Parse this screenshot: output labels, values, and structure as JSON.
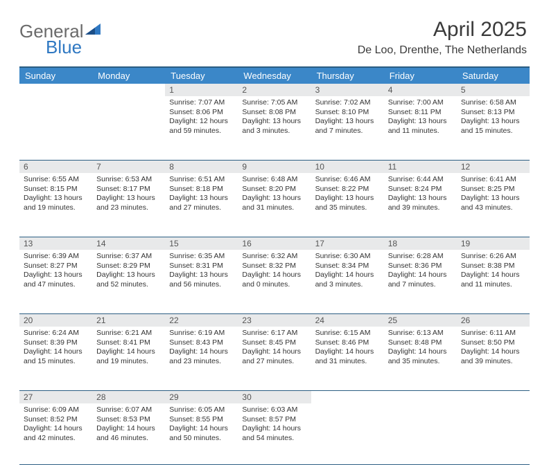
{
  "logo": {
    "word1": "General",
    "word2": "Blue"
  },
  "header": {
    "month": "April 2025",
    "location": "De Loo, Drenthe, The Netherlands"
  },
  "colors": {
    "header_bg": "#3b87c8",
    "header_text": "#ffffff",
    "row_divider": "#2a5d82",
    "daynum_bg": "#e8e9ea",
    "logo_gray": "#6a6a6a",
    "logo_blue": "#2f78c2"
  },
  "weekdays": [
    "Sunday",
    "Monday",
    "Tuesday",
    "Wednesday",
    "Thursday",
    "Friday",
    "Saturday"
  ],
  "weeks": [
    [
      null,
      null,
      {
        "n": "1",
        "sunrise": "7:07 AM",
        "sunset": "8:06 PM",
        "daylight": "12 hours and 59 minutes."
      },
      {
        "n": "2",
        "sunrise": "7:05 AM",
        "sunset": "8:08 PM",
        "daylight": "13 hours and 3 minutes."
      },
      {
        "n": "3",
        "sunrise": "7:02 AM",
        "sunset": "8:10 PM",
        "daylight": "13 hours and 7 minutes."
      },
      {
        "n": "4",
        "sunrise": "7:00 AM",
        "sunset": "8:11 PM",
        "daylight": "13 hours and 11 minutes."
      },
      {
        "n": "5",
        "sunrise": "6:58 AM",
        "sunset": "8:13 PM",
        "daylight": "13 hours and 15 minutes."
      }
    ],
    [
      {
        "n": "6",
        "sunrise": "6:55 AM",
        "sunset": "8:15 PM",
        "daylight": "13 hours and 19 minutes."
      },
      {
        "n": "7",
        "sunrise": "6:53 AM",
        "sunset": "8:17 PM",
        "daylight": "13 hours and 23 minutes."
      },
      {
        "n": "8",
        "sunrise": "6:51 AM",
        "sunset": "8:18 PM",
        "daylight": "13 hours and 27 minutes."
      },
      {
        "n": "9",
        "sunrise": "6:48 AM",
        "sunset": "8:20 PM",
        "daylight": "13 hours and 31 minutes."
      },
      {
        "n": "10",
        "sunrise": "6:46 AM",
        "sunset": "8:22 PM",
        "daylight": "13 hours and 35 minutes."
      },
      {
        "n": "11",
        "sunrise": "6:44 AM",
        "sunset": "8:24 PM",
        "daylight": "13 hours and 39 minutes."
      },
      {
        "n": "12",
        "sunrise": "6:41 AM",
        "sunset": "8:25 PM",
        "daylight": "13 hours and 43 minutes."
      }
    ],
    [
      {
        "n": "13",
        "sunrise": "6:39 AM",
        "sunset": "8:27 PM",
        "daylight": "13 hours and 47 minutes."
      },
      {
        "n": "14",
        "sunrise": "6:37 AM",
        "sunset": "8:29 PM",
        "daylight": "13 hours and 52 minutes."
      },
      {
        "n": "15",
        "sunrise": "6:35 AM",
        "sunset": "8:31 PM",
        "daylight": "13 hours and 56 minutes."
      },
      {
        "n": "16",
        "sunrise": "6:32 AM",
        "sunset": "8:32 PM",
        "daylight": "14 hours and 0 minutes."
      },
      {
        "n": "17",
        "sunrise": "6:30 AM",
        "sunset": "8:34 PM",
        "daylight": "14 hours and 3 minutes."
      },
      {
        "n": "18",
        "sunrise": "6:28 AM",
        "sunset": "8:36 PM",
        "daylight": "14 hours and 7 minutes."
      },
      {
        "n": "19",
        "sunrise": "6:26 AM",
        "sunset": "8:38 PM",
        "daylight": "14 hours and 11 minutes."
      }
    ],
    [
      {
        "n": "20",
        "sunrise": "6:24 AM",
        "sunset": "8:39 PM",
        "daylight": "14 hours and 15 minutes."
      },
      {
        "n": "21",
        "sunrise": "6:21 AM",
        "sunset": "8:41 PM",
        "daylight": "14 hours and 19 minutes."
      },
      {
        "n": "22",
        "sunrise": "6:19 AM",
        "sunset": "8:43 PM",
        "daylight": "14 hours and 23 minutes."
      },
      {
        "n": "23",
        "sunrise": "6:17 AM",
        "sunset": "8:45 PM",
        "daylight": "14 hours and 27 minutes."
      },
      {
        "n": "24",
        "sunrise": "6:15 AM",
        "sunset": "8:46 PM",
        "daylight": "14 hours and 31 minutes."
      },
      {
        "n": "25",
        "sunrise": "6:13 AM",
        "sunset": "8:48 PM",
        "daylight": "14 hours and 35 minutes."
      },
      {
        "n": "26",
        "sunrise": "6:11 AM",
        "sunset": "8:50 PM",
        "daylight": "14 hours and 39 minutes."
      }
    ],
    [
      {
        "n": "27",
        "sunrise": "6:09 AM",
        "sunset": "8:52 PM",
        "daylight": "14 hours and 42 minutes."
      },
      {
        "n": "28",
        "sunrise": "6:07 AM",
        "sunset": "8:53 PM",
        "daylight": "14 hours and 46 minutes."
      },
      {
        "n": "29",
        "sunrise": "6:05 AM",
        "sunset": "8:55 PM",
        "daylight": "14 hours and 50 minutes."
      },
      {
        "n": "30",
        "sunrise": "6:03 AM",
        "sunset": "8:57 PM",
        "daylight": "14 hours and 54 minutes."
      },
      null,
      null,
      null
    ]
  ],
  "labels": {
    "sunrise": "Sunrise: ",
    "sunset": "Sunset: ",
    "daylight": "Daylight: "
  }
}
